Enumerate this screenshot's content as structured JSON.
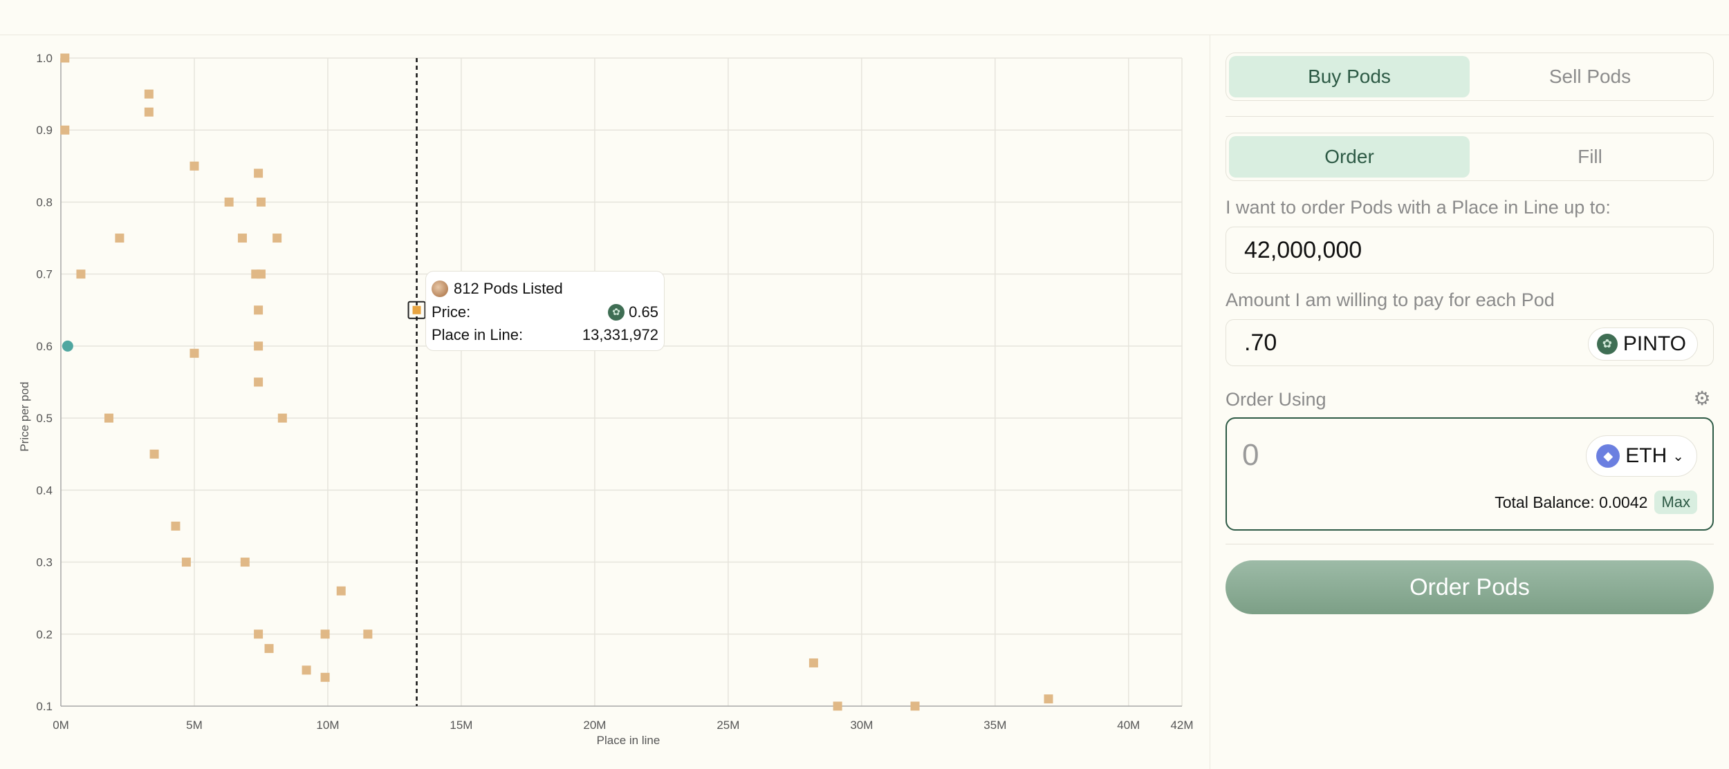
{
  "chart_data": {
    "type": "scatter",
    "xlabel": "Place in line",
    "ylabel": "Price per pod",
    "xlim": [
      0,
      42000000
    ],
    "ylim": [
      0.1,
      1.0
    ],
    "x_ticks": [
      {
        "value": 0,
        "label": "0M"
      },
      {
        "value": 5000000,
        "label": "5M"
      },
      {
        "value": 10000000,
        "label": "10M"
      },
      {
        "value": 15000000,
        "label": "15M"
      },
      {
        "value": 20000000,
        "label": "20M"
      },
      {
        "value": 25000000,
        "label": "25M"
      },
      {
        "value": 30000000,
        "label": "30M"
      },
      {
        "value": 35000000,
        "label": "35M"
      },
      {
        "value": 40000000,
        "label": "40M"
      },
      {
        "value": 42000000,
        "label": "42M"
      }
    ],
    "y_ticks": [
      {
        "value": 0.1,
        "label": "0.1"
      },
      {
        "value": 0.2,
        "label": "0.2"
      },
      {
        "value": 0.3,
        "label": "0.3"
      },
      {
        "value": 0.4,
        "label": "0.4"
      },
      {
        "value": 0.5,
        "label": "0.5"
      },
      {
        "value": 0.6,
        "label": "0.6"
      },
      {
        "value": 0.7,
        "label": "0.7"
      },
      {
        "value": 0.8,
        "label": "0.8"
      },
      {
        "value": 0.9,
        "label": "0.9"
      },
      {
        "value": 1.0,
        "label": "1.0"
      }
    ],
    "grid": true,
    "listing_color": "#e0b886",
    "order_color": "#4fa6a0",
    "crosshair_x": 13331972,
    "listings": [
      {
        "x": 150000,
        "y": 1.0
      },
      {
        "x": 3300000,
        "y": 0.95
      },
      {
        "x": 3300000,
        "y": 0.925
      },
      {
        "x": 150000,
        "y": 0.9
      },
      {
        "x": 5000000,
        "y": 0.85
      },
      {
        "x": 7400000,
        "y": 0.84
      },
      {
        "x": 6300000,
        "y": 0.8
      },
      {
        "x": 7500000,
        "y": 0.8
      },
      {
        "x": 2200000,
        "y": 0.75
      },
      {
        "x": 6800000,
        "y": 0.75
      },
      {
        "x": 8100000,
        "y": 0.75
      },
      {
        "x": 750000,
        "y": 0.7
      },
      {
        "x": 7300000,
        "y": 0.7
      },
      {
        "x": 7500000,
        "y": 0.7
      },
      {
        "x": 7400000,
        "y": 0.65
      },
      {
        "x": 5000000,
        "y": 0.59
      },
      {
        "x": 7400000,
        "y": 0.6
      },
      {
        "x": 7400000,
        "y": 0.55
      },
      {
        "x": 1800000,
        "y": 0.5
      },
      {
        "x": 8300000,
        "y": 0.5
      },
      {
        "x": 3500000,
        "y": 0.45
      },
      {
        "x": 4300000,
        "y": 0.35
      },
      {
        "x": 4700000,
        "y": 0.3
      },
      {
        "x": 6900000,
        "y": 0.3
      },
      {
        "x": 10500000,
        "y": 0.26
      },
      {
        "x": 7400000,
        "y": 0.2
      },
      {
        "x": 9900000,
        "y": 0.2
      },
      {
        "x": 11500000,
        "y": 0.2
      },
      {
        "x": 7800000,
        "y": 0.18
      },
      {
        "x": 9200000,
        "y": 0.15
      },
      {
        "x": 9900000,
        "y": 0.14
      },
      {
        "x": 28200000,
        "y": 0.16
      },
      {
        "x": 29100000,
        "y": 0.1
      },
      {
        "x": 32000000,
        "y": 0.1
      },
      {
        "x": 37000000,
        "y": 0.11
      },
      {
        "x": 13331972,
        "y": 0.65,
        "highlighted": true
      }
    ],
    "orders": [
      {
        "x": 100000,
        "y": 0.6
      }
    ]
  },
  "tooltip": {
    "title": "812 Pods Listed",
    "price_label": "Price:",
    "price_value": "0.65",
    "place_label": "Place in Line:",
    "place_value": "13,331,972"
  },
  "panel": {
    "mode_tabs": [
      "Buy Pods",
      "Sell Pods"
    ],
    "action_tabs": [
      "Order",
      "Fill"
    ],
    "place_label": "I want to order Pods with a Place in Line up to:",
    "place_value": "42,000,000",
    "price_label": "Amount I am willing to pay for each Pod",
    "price_value": ".70",
    "price_token": "PINTO",
    "using_label": "Order Using",
    "amount_placeholder": "0",
    "using_token": "ETH",
    "balance_text": "Total Balance: 0.0042",
    "max_label": "Max",
    "submit_label": "Order Pods"
  }
}
